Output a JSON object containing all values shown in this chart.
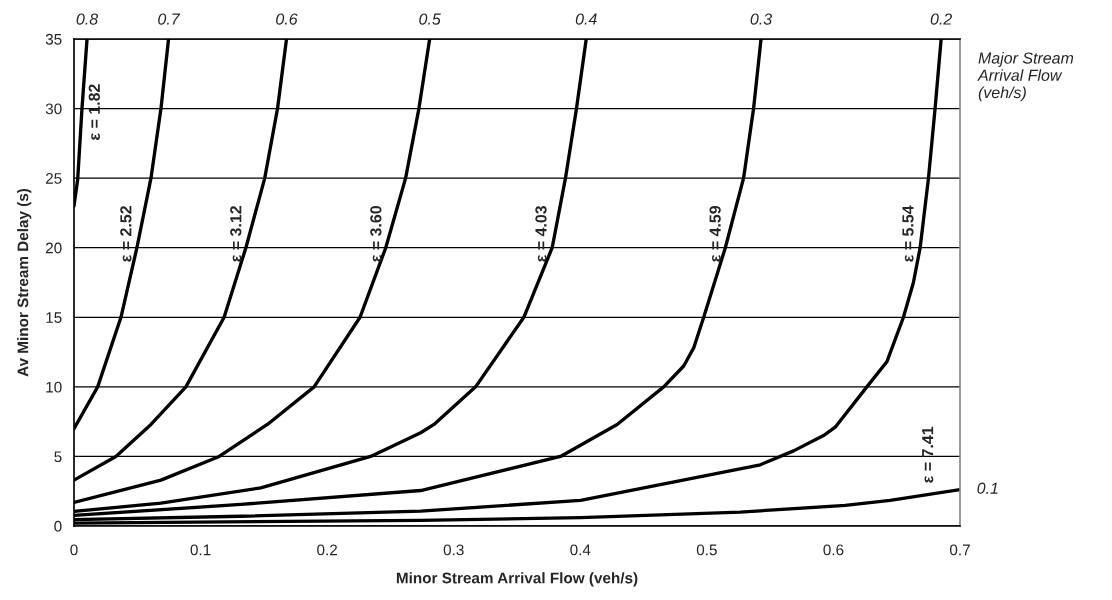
{
  "chart_data": {
    "type": "line",
    "xlabel": "Minor Stream Arrival Flow (veh/s)",
    "ylabel": "Av Minor Stream Delay (s)",
    "xlim": [
      0,
      0.7
    ],
    "ylim": [
      0,
      35
    ],
    "xticks": [
      0,
      0.1,
      0.2,
      0.3,
      0.4,
      0.5,
      0.6,
      0.7
    ],
    "yticks": [
      0,
      5,
      10,
      15,
      20,
      25,
      30,
      35
    ],
    "grid": "y",
    "legend": false,
    "marker": "none",
    "line_style": "solid",
    "legend_title": "Major Stream Arrival Flow (veh/s)",
    "series": [
      {
        "name": "0.8",
        "color": "#000000",
        "x": [
          0,
          0.0029,
          0.0063,
          0.0103
        ],
        "values": [
          23,
          24.9,
          30,
          35
        ]
      },
      {
        "name": "0.7",
        "color": "#000000",
        "x": [
          0,
          0.0187,
          0.0371,
          0.0497,
          0.0608,
          0.0687,
          0.0747
        ],
        "values": [
          7,
          10,
          15,
          20,
          25,
          30,
          35
        ]
      },
      {
        "name": "0.6",
        "color": "#000000",
        "x": [
          0,
          0.0331,
          0.0608,
          0.0884,
          0.1186,
          0.1358,
          0.1507,
          0.1608,
          0.1679
        ],
        "values": [
          3.3,
          5,
          7.3,
          10,
          15,
          20,
          25,
          30,
          35
        ]
      },
      {
        "name": "0.5",
        "color": "#000000",
        "x": [
          0,
          0.0687,
          0.1147,
          0.1528,
          0.1897,
          0.226,
          0.2463,
          0.262,
          0.2725,
          0.281
        ],
        "values": [
          1.7,
          3.3,
          5,
          7.3,
          10,
          15,
          20,
          25,
          30,
          35
        ]
      },
      {
        "name": "0.4",
        "color": "#000000",
        "x": [
          0,
          0.0687,
          0.1476,
          0.2344,
          0.2739,
          0.2844,
          0.3173,
          0.3554,
          0.3778,
          0.3883,
          0.397,
          0.4047
        ],
        "values": [
          1.05,
          1.64,
          2.74,
          5,
          6.7,
          7.3,
          10,
          15,
          20,
          25,
          30,
          35
        ]
      },
      {
        "name": "0.3",
        "color": "#000000",
        "x": [
          0,
          0.1318,
          0.2739,
          0.3844,
          0.4291,
          0.4659,
          0.4817,
          0.4896,
          0.4975,
          0.5146,
          0.529,
          0.5369,
          0.5428
        ],
        "values": [
          0.76,
          1.55,
          2.55,
          5,
          7.3,
          10,
          11.5,
          12.8,
          15,
          20,
          25,
          30,
          35
        ]
      },
      {
        "name": "0.2",
        "color": "#000000",
        "x": [
          0,
          0.1318,
          0.2739,
          0.4002,
          0.5422,
          0.5685,
          0.5922,
          0.6014,
          0.6264,
          0.6422,
          0.6553,
          0.6632,
          0.6685,
          0.6751,
          0.6803,
          0.6851
        ],
        "values": [
          0.46,
          0.7,
          1.07,
          1.84,
          4.4,
          5.4,
          6.5,
          7.1,
          10,
          11.8,
          15,
          17.5,
          20,
          25,
          30,
          35
        ]
      },
      {
        "name": "0.1",
        "color": "#000000",
        "x": [
          0,
          0.2739,
          0.4002,
          0.5264,
          0.6093,
          0.6448,
          0.7
        ],
        "values": [
          0.21,
          0.41,
          0.6,
          1.0,
          1.48,
          1.84,
          2.62
        ]
      }
    ],
    "annotations": [
      "ε = 1.82",
      "ε = 2.52",
      "ε = 3.12",
      "ε = 3.60",
      "ε = 4.03",
      "ε = 4.59",
      "ε = 5.54",
      "ε = 7.41"
    ]
  }
}
